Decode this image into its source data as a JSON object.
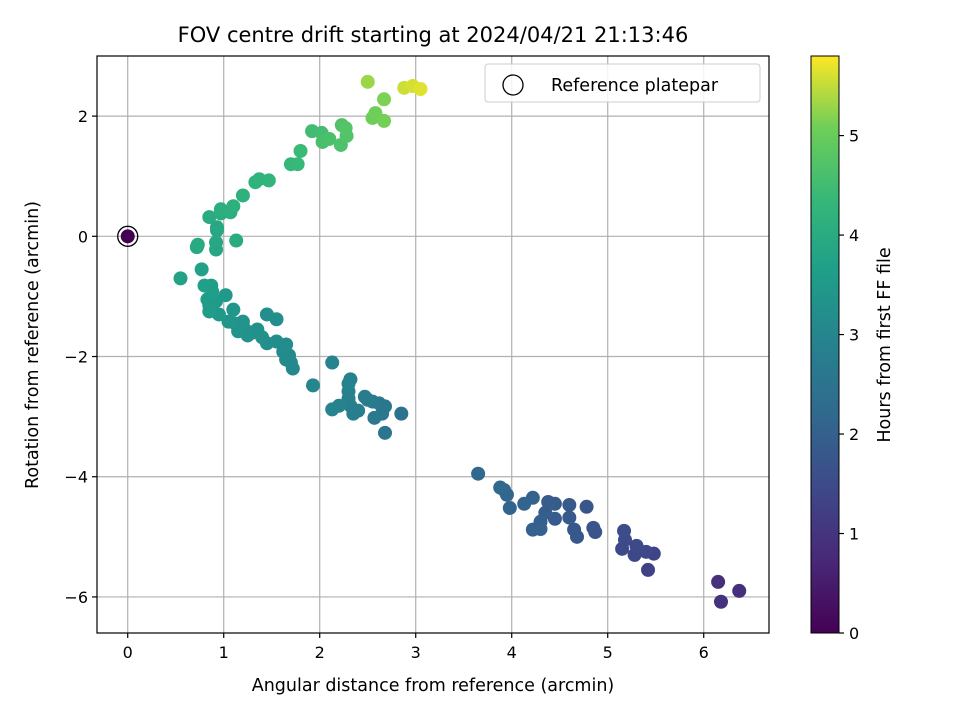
{
  "chart_data": {
    "type": "scatter",
    "title": "FOV centre drift starting at 2024/04/21 21:13:46",
    "xlabel": "Angular distance from reference (arcmin)",
    "ylabel": "Rotation from reference (arcmin)",
    "xlim": [
      -0.32,
      6.68
    ],
    "ylim": [
      -6.6,
      3.0
    ],
    "xticks": [
      0,
      1,
      2,
      3,
      4,
      5,
      6
    ],
    "yticks": [
      -6,
      -4,
      -2,
      0,
      2
    ],
    "grid": true,
    "legend": {
      "position": "top-right",
      "entries": [
        "Reference platepar"
      ]
    },
    "colorbar": {
      "label": "Hours from first FF file",
      "colormap": "viridis",
      "range": [
        0,
        5.8
      ],
      "ticks": [
        0,
        1,
        2,
        3,
        4,
        5
      ]
    },
    "reference_point": {
      "x": 0,
      "y": 0
    },
    "points": [
      {
        "x": 6.15,
        "y": -5.75,
        "h": 0.9
      },
      {
        "x": 6.18,
        "y": -6.08,
        "h": 0.95
      },
      {
        "x": 6.37,
        "y": -5.9,
        "h": 0.88
      },
      {
        "x": 5.42,
        "y": -5.55,
        "h": 1.3
      },
      {
        "x": 5.48,
        "y": -5.28,
        "h": 1.35
      },
      {
        "x": 5.4,
        "y": -5.25,
        "h": 1.4
      },
      {
        "x": 5.28,
        "y": -5.3,
        "h": 1.42
      },
      {
        "x": 5.3,
        "y": -5.15,
        "h": 1.45
      },
      {
        "x": 5.18,
        "y": -5.05,
        "h": 1.5
      },
      {
        "x": 5.15,
        "y": -5.2,
        "h": 1.48
      },
      {
        "x": 5.17,
        "y": -4.9,
        "h": 1.55
      },
      {
        "x": 4.87,
        "y": -4.92,
        "h": 1.7
      },
      {
        "x": 4.85,
        "y": -4.85,
        "h": 1.72
      },
      {
        "x": 4.78,
        "y": -4.5,
        "h": 1.75
      },
      {
        "x": 4.68,
        "y": -5.0,
        "h": 1.78
      },
      {
        "x": 4.65,
        "y": -4.88,
        "h": 1.8
      },
      {
        "x": 4.6,
        "y": -4.68,
        "h": 1.82
      },
      {
        "x": 4.6,
        "y": -4.47,
        "h": 1.85
      },
      {
        "x": 4.45,
        "y": -4.7,
        "h": 1.88
      },
      {
        "x": 4.45,
        "y": -4.45,
        "h": 1.9
      },
      {
        "x": 4.38,
        "y": -4.42,
        "h": 1.92
      },
      {
        "x": 4.35,
        "y": -4.6,
        "h": 1.95
      },
      {
        "x": 4.3,
        "y": -4.75,
        "h": 1.97
      },
      {
        "x": 4.3,
        "y": -4.87,
        "h": 2.0
      },
      {
        "x": 4.22,
        "y": -4.88,
        "h": 2.02
      },
      {
        "x": 4.22,
        "y": -4.35,
        "h": 2.05
      },
      {
        "x": 4.13,
        "y": -4.45,
        "h": 2.08
      },
      {
        "x": 3.98,
        "y": -4.52,
        "h": 2.1
      },
      {
        "x": 3.95,
        "y": -4.3,
        "h": 2.12
      },
      {
        "x": 3.92,
        "y": -4.22,
        "h": 2.15
      },
      {
        "x": 3.88,
        "y": -4.18,
        "h": 2.17
      },
      {
        "x": 3.65,
        "y": -3.95,
        "h": 2.2
      },
      {
        "x": 2.85,
        "y": -2.95,
        "h": 2.5
      },
      {
        "x": 2.68,
        "y": -3.27,
        "h": 2.55
      },
      {
        "x": 2.68,
        "y": -2.83,
        "h": 2.58
      },
      {
        "x": 2.62,
        "y": -2.78,
        "h": 2.6
      },
      {
        "x": 2.65,
        "y": -2.95,
        "h": 2.62
      },
      {
        "x": 2.57,
        "y": -3.02,
        "h": 2.65
      },
      {
        "x": 2.55,
        "y": -2.75,
        "h": 2.68
      },
      {
        "x": 2.5,
        "y": -2.72,
        "h": 2.7
      },
      {
        "x": 2.47,
        "y": -2.67,
        "h": 2.72
      },
      {
        "x": 2.4,
        "y": -2.9,
        "h": 2.75
      },
      {
        "x": 2.35,
        "y": -2.95,
        "h": 2.77
      },
      {
        "x": 2.32,
        "y": -2.82,
        "h": 2.8
      },
      {
        "x": 2.3,
        "y": -2.7,
        "h": 2.82
      },
      {
        "x": 2.3,
        "y": -2.58,
        "h": 2.85
      },
      {
        "x": 2.32,
        "y": -2.38,
        "h": 2.87
      },
      {
        "x": 2.3,
        "y": -2.45,
        "h": 2.9
      },
      {
        "x": 2.2,
        "y": -2.82,
        "h": 2.92
      },
      {
        "x": 2.13,
        "y": -2.88,
        "h": 2.94
      },
      {
        "x": 2.13,
        "y": -2.1,
        "h": 2.96
      },
      {
        "x": 1.93,
        "y": -2.48,
        "h": 3.0
      },
      {
        "x": 1.72,
        "y": -2.2,
        "h": 3.05
      },
      {
        "x": 1.7,
        "y": -2.1,
        "h": 3.08
      },
      {
        "x": 1.68,
        "y": -1.98,
        "h": 3.1
      },
      {
        "x": 1.65,
        "y": -2.05,
        "h": 3.12
      },
      {
        "x": 1.62,
        "y": -1.92,
        "h": 3.14
      },
      {
        "x": 1.65,
        "y": -1.8,
        "h": 3.16
      },
      {
        "x": 1.55,
        "y": -1.75,
        "h": 3.18
      },
      {
        "x": 1.55,
        "y": -1.38,
        "h": 3.2
      },
      {
        "x": 1.45,
        "y": -1.3,
        "h": 3.22
      },
      {
        "x": 1.45,
        "y": -1.78,
        "h": 3.24
      },
      {
        "x": 1.4,
        "y": -1.68,
        "h": 3.26
      },
      {
        "x": 1.35,
        "y": -1.55,
        "h": 3.28
      },
      {
        "x": 1.3,
        "y": -1.6,
        "h": 3.3
      },
      {
        "x": 1.25,
        "y": -1.65,
        "h": 3.32
      },
      {
        "x": 1.22,
        "y": -1.55,
        "h": 3.34
      },
      {
        "x": 1.2,
        "y": -1.42,
        "h": 3.36
      },
      {
        "x": 1.15,
        "y": -1.58,
        "h": 3.38
      },
      {
        "x": 1.12,
        "y": -1.45,
        "h": 3.4
      },
      {
        "x": 1.1,
        "y": -1.22,
        "h": 3.42
      },
      {
        "x": 1.05,
        "y": -1.42,
        "h": 3.45
      },
      {
        "x": 0.95,
        "y": -1.3,
        "h": 3.48
      },
      {
        "x": 1.02,
        "y": -0.98,
        "h": 3.5
      },
      {
        "x": 0.92,
        "y": -1.08,
        "h": 3.52
      },
      {
        "x": 0.85,
        "y": -1.15,
        "h": 3.55
      },
      {
        "x": 0.85,
        "y": -1.25,
        "h": 3.57
      },
      {
        "x": 0.83,
        "y": -1.05,
        "h": 3.6
      },
      {
        "x": 0.88,
        "y": -0.92,
        "h": 3.62
      },
      {
        "x": 0.87,
        "y": -0.82,
        "h": 3.65
      },
      {
        "x": 0.8,
        "y": -0.82,
        "h": 3.68
      },
      {
        "x": 0.77,
        "y": -0.55,
        "h": 3.7
      },
      {
        "x": 0.55,
        "y": -0.7,
        "h": 3.75
      },
      {
        "x": 0.92,
        "y": -0.22,
        "h": 3.85
      },
      {
        "x": 0.92,
        "y": -0.1,
        "h": 3.88
      },
      {
        "x": 0.93,
        "y": 0.1,
        "h": 3.9
      },
      {
        "x": 0.93,
        "y": 0.15,
        "h": 3.92
      },
      {
        "x": 0.72,
        "y": -0.18,
        "h": 3.94
      },
      {
        "x": 0.73,
        "y": -0.14,
        "h": 3.96
      },
      {
        "x": 1.13,
        "y": -0.07,
        "h": 3.98
      },
      {
        "x": 0.85,
        "y": 0.32,
        "h": 4.0
      },
      {
        "x": 0.97,
        "y": 0.38,
        "h": 4.05
      },
      {
        "x": 0.97,
        "y": 0.45,
        "h": 4.08
      },
      {
        "x": 1.07,
        "y": 0.4,
        "h": 4.1
      },
      {
        "x": 1.1,
        "y": 0.5,
        "h": 4.12
      },
      {
        "x": 1.2,
        "y": 0.68,
        "h": 4.15
      },
      {
        "x": 1.33,
        "y": 0.9,
        "h": 4.2
      },
      {
        "x": 1.37,
        "y": 0.95,
        "h": 4.22
      },
      {
        "x": 1.47,
        "y": 0.93,
        "h": 4.25
      },
      {
        "x": 1.7,
        "y": 1.2,
        "h": 4.35
      },
      {
        "x": 1.77,
        "y": 1.2,
        "h": 4.38
      },
      {
        "x": 1.8,
        "y": 1.42,
        "h": 4.42
      },
      {
        "x": 1.92,
        "y": 1.75,
        "h": 4.5
      },
      {
        "x": 2.02,
        "y": 1.72,
        "h": 4.55
      },
      {
        "x": 2.03,
        "y": 1.57,
        "h": 4.6
      },
      {
        "x": 2.1,
        "y": 1.62,
        "h": 4.62
      },
      {
        "x": 2.22,
        "y": 1.52,
        "h": 4.66
      },
      {
        "x": 2.23,
        "y": 1.85,
        "h": 4.7
      },
      {
        "x": 2.28,
        "y": 1.67,
        "h": 4.72
      },
      {
        "x": 2.27,
        "y": 1.8,
        "h": 4.75
      },
      {
        "x": 2.55,
        "y": 1.97,
        "h": 5.05
      },
      {
        "x": 2.58,
        "y": 2.05,
        "h": 5.08
      },
      {
        "x": 2.67,
        "y": 1.92,
        "h": 5.1
      },
      {
        "x": 2.67,
        "y": 2.28,
        "h": 5.15
      },
      {
        "x": 2.5,
        "y": 2.57,
        "h": 5.3
      },
      {
        "x": 2.88,
        "y": 2.47,
        "h": 5.55
      },
      {
        "x": 2.97,
        "y": 2.5,
        "h": 5.6
      },
      {
        "x": 3.05,
        "y": 2.45,
        "h": 5.65
      }
    ]
  }
}
